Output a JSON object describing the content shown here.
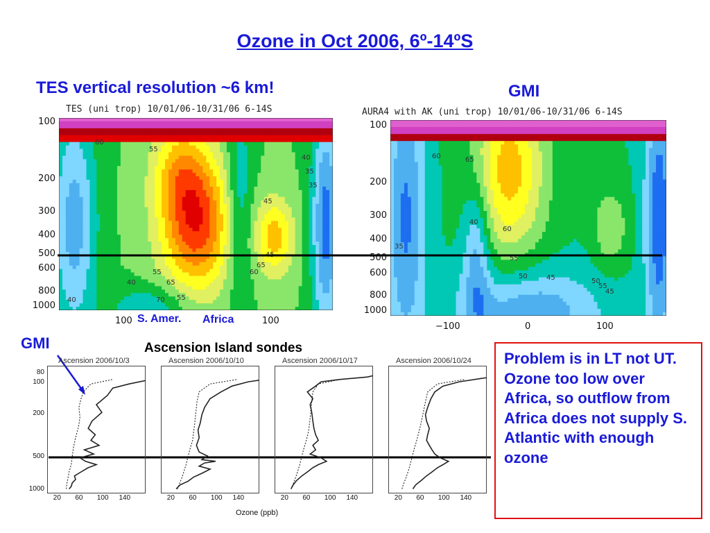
{
  "title": "Ozone in Oct 2006, 6º-14ºS",
  "tes_label": "TES vertical resolution ~6 km!",
  "gmi_label_top": "GMI",
  "gmi_label_sonde": "GMI",
  "sondes_title": "Ascension Island sondes",
  "note_text": "Problem is in LT not UT.  Ozone too low over Africa, so outflow from Africa does not supply S. Atlantic with enough ozone",
  "region_labels": {
    "samer": "S. Amer.",
    "africa": "Africa"
  },
  "colors": {
    "title_blue": "#1a1ad8",
    "note_border": "#e01010",
    "contour_levels": [
      "#3a0f8c",
      "#2a2ad0",
      "#1d6ef0",
      "#4fb0f0",
      "#7fd6ff",
      "#00c8b4",
      "#0fbf3a",
      "#8ae66a",
      "#e0f060",
      "#ffff20",
      "#ffc000",
      "#ff8800",
      "#ff3a00",
      "#e00000",
      "#b00010",
      "#d040c0",
      "#e060d0"
    ]
  },
  "chart_data": [
    {
      "type": "heatmap",
      "title": "TES (uni trop) 10/01/06-10/31/06 6-14S",
      "ylabel": "",
      "xlabel": "",
      "yticks": [
        "100",
        "200",
        "300",
        "400",
        "500",
        "600",
        "800",
        "1000"
      ],
      "xticks": [
        "100",
        "100"
      ],
      "contour_labels": [
        "60",
        "55",
        "55",
        "45",
        "45",
        "40",
        "40",
        "65",
        "70",
        "55",
        "60",
        "65",
        "40",
        "35",
        "35"
      ]
    },
    {
      "type": "heatmap",
      "title": "AURA4   with AK (uni trop) 10/01/06-10/31/06 6-14S",
      "yticks": [
        "100",
        "200",
        "300",
        "400",
        "500",
        "600",
        "800",
        "1000"
      ],
      "xticks": [
        "−100",
        "0",
        "100"
      ],
      "contour_labels": [
        "60",
        "65",
        "40",
        "60",
        "35",
        "55",
        "45",
        "50",
        "50",
        "55",
        "45"
      ]
    },
    {
      "type": "line",
      "xlabel": "Ozone (ppb)",
      "ylabel": "",
      "yticks": [
        "80",
        "100",
        "200",
        "500",
        "1000"
      ],
      "xticks": [
        "20",
        "60",
        "100",
        "140"
      ],
      "panels": [
        {
          "title": "Ascension 2006/10/3",
          "series": [
            {
              "style": "solid",
              "x": [
                40,
                44,
                46,
                52,
                50,
                62,
                75,
                90,
                70,
                60,
                85,
                68,
                95,
                80,
                88,
                75,
                82,
                100,
                90,
                110,
                120,
                150,
                190
              ],
              "y": [
                1000,
                950,
                880,
                820,
                760,
                700,
                640,
                600,
                560,
                520,
                480,
                440,
                400,
                360,
                320,
                280,
                240,
                200,
                170,
                140,
                120,
                110,
                100
              ]
            },
            {
              "style": "dotted",
              "x": [
                35,
                36,
                38,
                40,
                44,
                46,
                48,
                50,
                52,
                55,
                58,
                60,
                58,
                62,
                66,
                80,
                120
              ],
              "y": [
                1000,
                900,
                800,
                700,
                600,
                500,
                420,
                380,
                340,
                300,
                260,
                220,
                180,
                150,
                130,
                110,
                100
              ]
            }
          ]
        },
        {
          "title": "Ascension 2006/10/10",
          "series": [
            {
              "style": "solid",
              "x": [
                28,
                35,
                50,
                60,
                75,
                90,
                70,
                80,
                100,
                75,
                85,
                70,
                65,
                70,
                68,
                72,
                75,
                80,
                90,
                110,
                130,
                160,
                190
              ],
              "y": [
                1000,
                920,
                850,
                780,
                720,
                660,
                620,
                580,
                560,
                540,
                500,
                460,
                400,
                340,
                290,
                250,
                210,
                180,
                150,
                130,
                115,
                105,
                100
              ]
            },
            {
              "style": "dotted",
              "x": [
                30,
                34,
                38,
                42,
                46,
                50,
                54,
                58,
                60,
                62,
                64,
                66,
                70,
                90,
                140
              ],
              "y": [
                1000,
                900,
                800,
                700,
                600,
                500,
                420,
                360,
                300,
                250,
                200,
                160,
                130,
                110,
                100
              ]
            }
          ]
        },
        {
          "title": "Ascension 2006/10/17",
          "series": [
            {
              "style": "solid",
              "x": [
                30,
                34,
                40,
                50,
                60,
                70,
                80,
                95,
                85,
                65,
                75,
                70,
                80,
                75,
                72,
                70,
                68,
                65,
                70,
                60,
                75,
                85,
                120,
                170,
                190
              ],
              "y": [
                1000,
                920,
                840,
                760,
                700,
                640,
                600,
                560,
                520,
                480,
                440,
                400,
                360,
                320,
                280,
                240,
                200,
                170,
                150,
                130,
                115,
                105,
                100,
                95,
                90
              ]
            },
            {
              "style": "dotted",
              "x": [
                30,
                34,
                38,
                42,
                46,
                50,
                54,
                58,
                62,
                64,
                66,
                68,
                70,
                80,
                120
              ],
              "y": [
                1000,
                900,
                800,
                700,
                600,
                500,
                420,
                360,
                300,
                250,
                200,
                160,
                130,
                110,
                100
              ]
            }
          ]
        },
        {
          "title": "Ascension 2006/10/24",
          "series": [
            {
              "style": "solid",
              "x": [
                45,
                50,
                60,
                70,
                80,
                90,
                100,
                110,
                95,
                85,
                80,
                75,
                70,
                72,
                75,
                70,
                68,
                72,
                78,
                85,
                100,
                130,
                170,
                190
              ],
              "y": [
                1000,
                920,
                840,
                760,
                700,
                640,
                600,
                560,
                520,
                480,
                440,
                400,
                360,
                320,
                280,
                240,
                210,
                180,
                150,
                130,
                115,
                105,
                98,
                95
              ]
            },
            {
              "style": "dotted",
              "x": [
                25,
                28,
                32,
                36,
                40,
                44,
                48,
                52,
                56,
                60,
                64,
                68,
                72,
                90,
                140
              ],
              "y": [
                1000,
                900,
                800,
                700,
                600,
                500,
                420,
                360,
                300,
                250,
                200,
                160,
                130,
                110,
                100
              ]
            }
          ]
        }
      ]
    }
  ]
}
